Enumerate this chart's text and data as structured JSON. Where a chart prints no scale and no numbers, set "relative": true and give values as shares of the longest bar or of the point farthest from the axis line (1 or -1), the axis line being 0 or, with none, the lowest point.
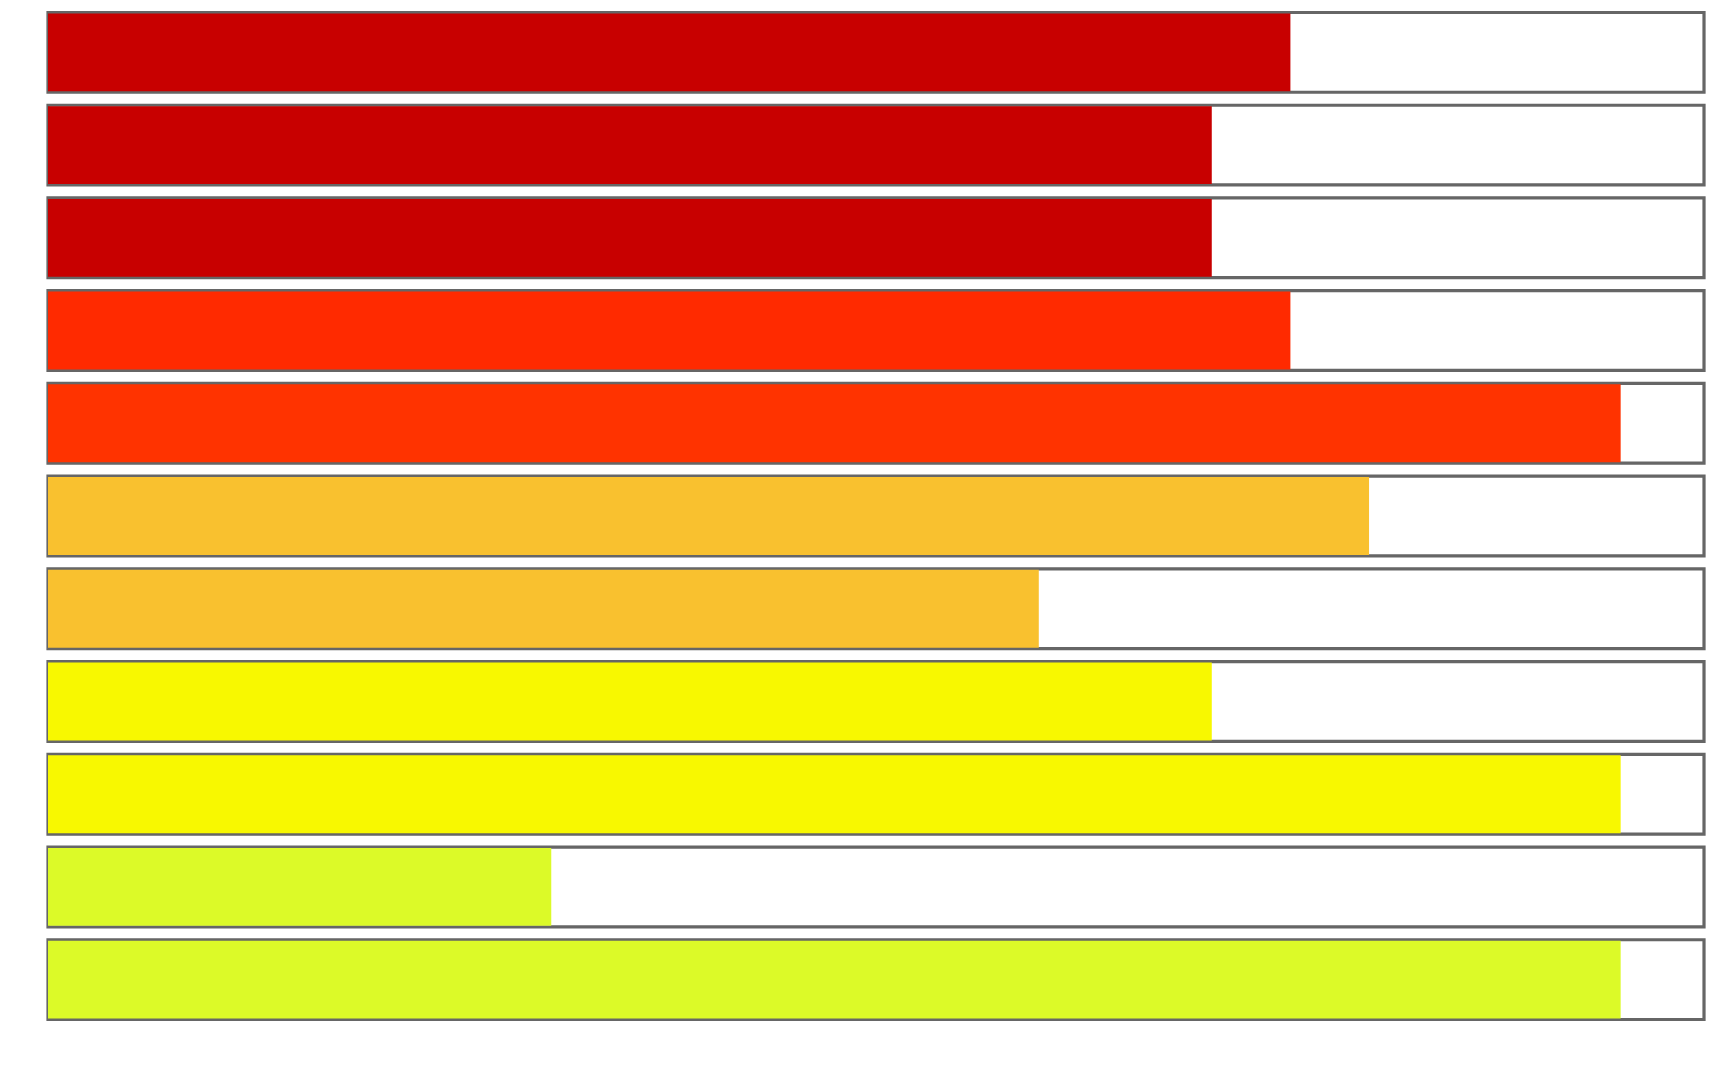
{
  "chart_data": {
    "type": "bar",
    "orientation": "horizontal",
    "relative": true,
    "categories": [
      null,
      null,
      null,
      null,
      null,
      null,
      null,
      null,
      null,
      null,
      null
    ],
    "values": [
      0.79,
      0.74,
      0.74,
      0.79,
      1,
      0.84,
      0.63,
      0.74,
      1,
      0.32,
      1
    ],
    "colors": [
      "#c80000",
      "#c80000",
      "#c80000",
      "#ff2a00",
      "#ff3300",
      "#f9c12f",
      "#f9c12f",
      "#f8f800",
      "#f8f800",
      "#dcfa28",
      "#dcfa28"
    ]
  }
}
